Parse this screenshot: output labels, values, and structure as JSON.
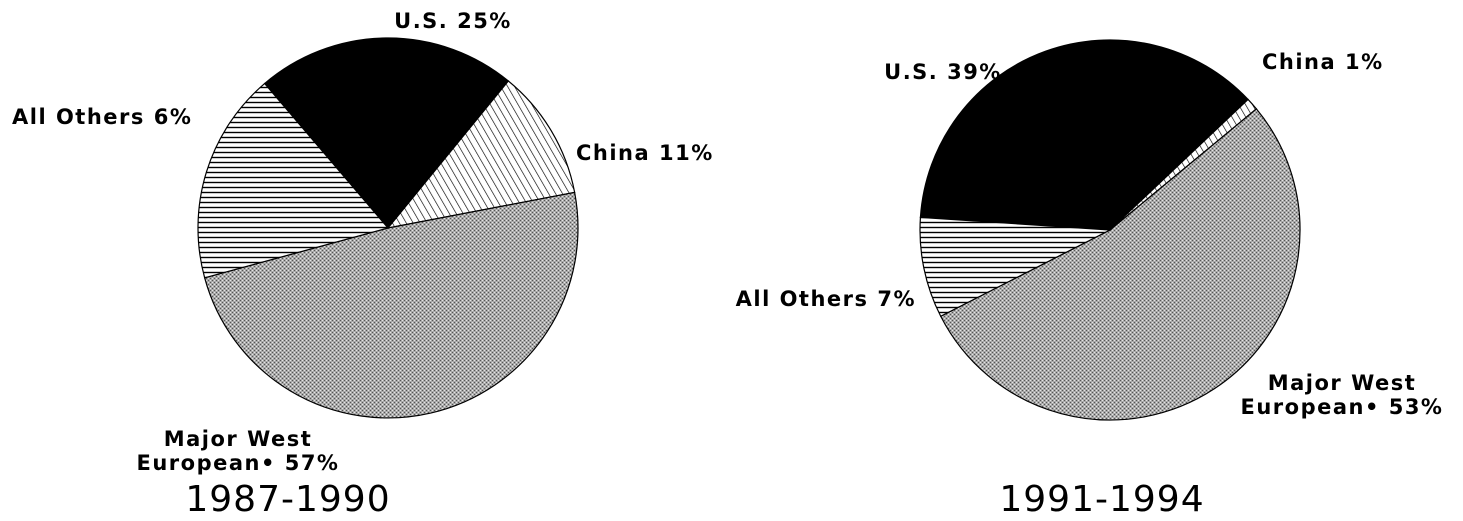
{
  "chart_data": [
    {
      "type": "pie",
      "title": "1987-1990",
      "slices": [
        {
          "name": "U.S.",
          "value": 25,
          "label_lines": [
            "U.S. 25%"
          ],
          "fill": "black"
        },
        {
          "name": "China",
          "value": 11,
          "label_lines": [
            "China 11%"
          ],
          "fill": "diag"
        },
        {
          "name": "Major West European*",
          "value": 57,
          "label_lines": [
            "Major West",
            "European• 57%"
          ],
          "fill": "cross"
        },
        {
          "name": "All Others",
          "value": 6,
          "label_lines": [
            "All Others 6%"
          ],
          "fill": "horiz"
        }
      ]
    },
    {
      "type": "pie",
      "title": "1991-1994",
      "slices": [
        {
          "name": "U.S.",
          "value": 39,
          "label_lines": [
            "U.S. 39%"
          ],
          "fill": "black"
        },
        {
          "name": "China",
          "value": 1,
          "label_lines": [
            "China 1%"
          ],
          "fill": "diag"
        },
        {
          "name": "Major West European*",
          "value": 53,
          "label_lines": [
            "Major West",
            "European• 53%"
          ],
          "fill": "cross"
        },
        {
          "name": "All Others",
          "value": 7,
          "label_lines": [
            "All Others 7%"
          ],
          "fill": "horiz"
        }
      ]
    }
  ]
}
